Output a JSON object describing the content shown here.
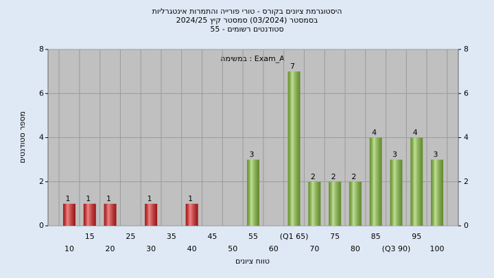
{
  "chart_data": {
    "type": "bar",
    "title": [
      "היסטוגרמת ציונים בקורס - טורי פורייה והתמרות אינטגרליות",
      "בסמסטר (03/2024) סמסטר קיץ 2024/25",
      "סטודנטים רשומים - 55"
    ],
    "annotation": "Exam_A : במשימה",
    "x_label": "טווח ציונים",
    "y_label": "מספר סטודנטים",
    "categories": [
      "10",
      "15",
      "20",
      "25",
      "30",
      "35",
      "40",
      "45",
      "50",
      "55",
      "60",
      "(Q1 65)",
      "70",
      "75",
      "80",
      "85",
      "(Q3 90)",
      "95",
      "100"
    ],
    "values": [
      1,
      1,
      1,
      0,
      1,
      0,
      1,
      0,
      0,
      3,
      0,
      7,
      2,
      2,
      2,
      4,
      3,
      4,
      3
    ],
    "bar_colors": [
      "#e02020",
      "#e02020",
      "#e02020",
      "#e02020",
      "#e02020",
      "#e02020",
      "#e02020",
      "#e02020",
      "#e02020",
      "#8cc63f",
      "#8cc63f",
      "#8cc63f",
      "#8cc63f",
      "#8cc63f",
      "#8cc63f",
      "#8cc63f",
      "#8cc63f",
      "#8cc63f",
      "#8cc63f"
    ],
    "ylim": [
      0,
      8
    ],
    "yticks": [
      0,
      2,
      4,
      6,
      8
    ],
    "y2lim": [
      0,
      8
    ],
    "y2ticks": [
      0,
      2,
      4,
      6,
      8
    ],
    "grid": true
  }
}
